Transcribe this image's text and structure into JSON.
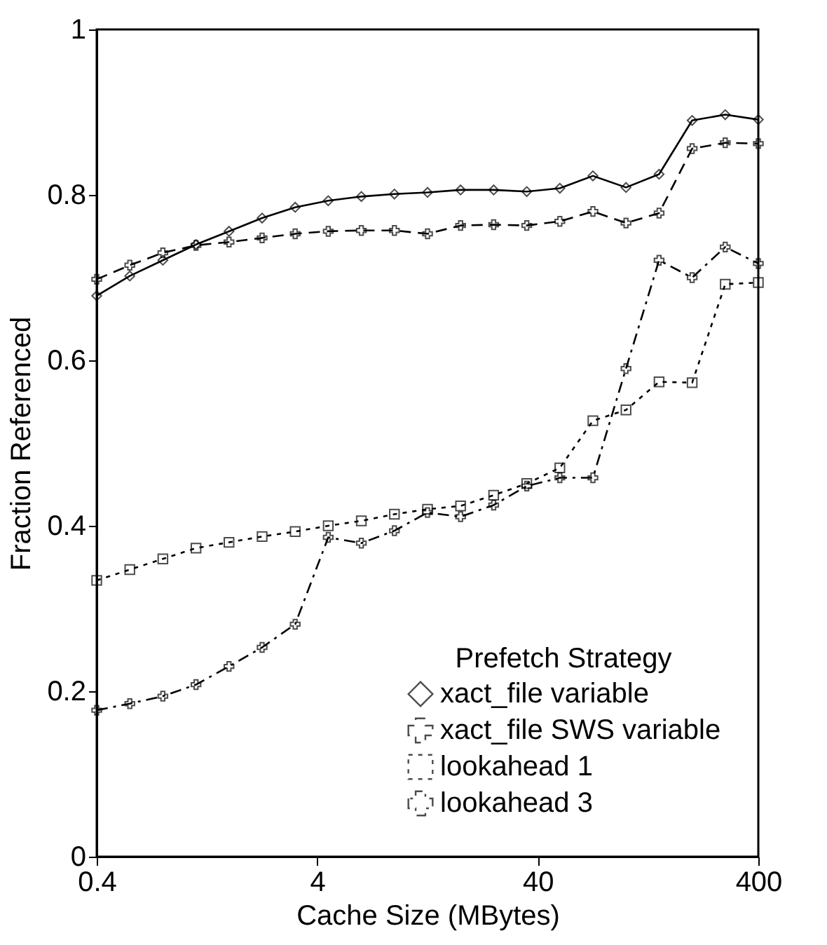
{
  "chart_data": {
    "type": "line",
    "xlabel": "Cache Size (MBytes)",
    "ylabel": "Fraction Referenced",
    "legend_title": "Prefetch Strategy",
    "legend": "bottom right",
    "log": "x",
    "grid": false,
    "x": [
      0.4,
      0.565,
      0.798,
      1.128,
      1.592,
      2.249,
      3.177,
      4.487,
      6.339,
      8.954,
      12.649,
      17.867,
      25.238,
      35.651,
      50.357,
      71.131,
      100.475,
      141.925,
      200.475,
      283.178,
      400
    ],
    "xlim": [
      0.4,
      400
    ],
    "xticks": [
      0.4,
      4,
      40,
      400
    ],
    "ylim": [
      0,
      1
    ],
    "yticks": [
      0,
      0.2,
      0.4,
      0.6,
      0.8,
      1
    ],
    "series": [
      {
        "name": "xact_file variable",
        "color": "#000000",
        "marker": "diamond",
        "line_style": "solid",
        "values": [
          0.678,
          0.702,
          0.721,
          0.74,
          0.756,
          0.772,
          0.785,
          0.793,
          0.798,
          0.801,
          0.803,
          0.806,
          0.806,
          0.804,
          0.808,
          0.823,
          0.809,
          0.825,
          0.89,
          0.897,
          0.891
        ]
      },
      {
        "name": "xact_file SWS variable",
        "color": "#000000",
        "marker": "cross",
        "line_style": "dashed",
        "values": [
          0.698,
          0.715,
          0.73,
          0.739,
          0.743,
          0.748,
          0.753,
          0.756,
          0.757,
          0.757,
          0.753,
          0.763,
          0.764,
          0.763,
          0.768,
          0.78,
          0.766,
          0.778,
          0.856,
          0.863,
          0.862
        ]
      },
      {
        "name": "lookahead 1",
        "color": "#000000",
        "marker": "square",
        "line_style": "dotted",
        "values": [
          0.334,
          0.347,
          0.36,
          0.373,
          0.38,
          0.387,
          0.393,
          0.4,
          0.406,
          0.414,
          0.42,
          0.424,
          0.437,
          0.451,
          0.47,
          0.527,
          0.54,
          0.574,
          0.573,
          0.692,
          0.694
        ]
      },
      {
        "name": "lookahead 3",
        "color": "#000000",
        "marker": "cross",
        "line_style": "dashdot",
        "values": [
          0.177,
          0.185,
          0.194,
          0.208,
          0.23,
          0.253,
          0.281,
          0.386,
          0.379,
          0.394,
          0.416,
          0.411,
          0.425,
          0.448,
          0.458,
          0.458,
          0.59,
          0.721,
          0.7,
          0.737,
          0.717
        ]
      }
    ]
  }
}
